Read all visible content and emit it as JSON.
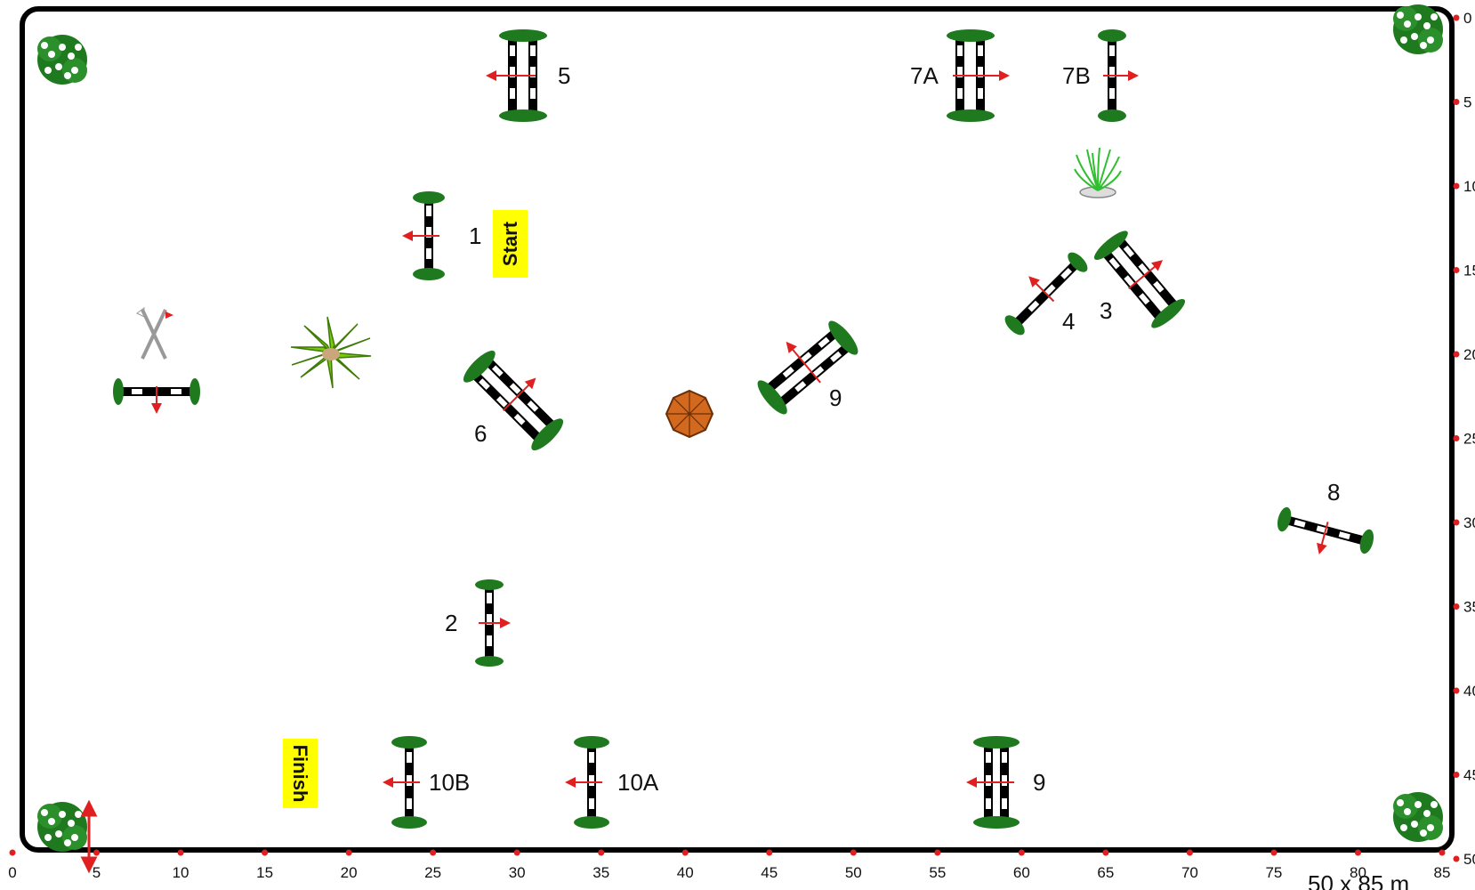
{
  "arena": {
    "size_label": "50 x 85 m",
    "x_ticks": [
      "0",
      "5",
      "10",
      "15",
      "20",
      "25",
      "30",
      "35",
      "40",
      "45",
      "50",
      "55",
      "60",
      "65",
      "70",
      "75",
      "80",
      "85"
    ],
    "y_ticks": [
      "0",
      "5",
      "10",
      "15",
      "20",
      "25",
      "30",
      "35",
      "40",
      "45",
      "50"
    ],
    "colors": {
      "border": "#000000",
      "foliage": "#1f7a1f",
      "arrow": "#e02020",
      "badge": "#ffff00",
      "umbrella": "#d2691e",
      "tick_dot": "#e02020"
    }
  },
  "badges": {
    "start": "Start",
    "finish": "Finish"
  },
  "obstacles": [
    {
      "id": "1",
      "label": "1",
      "kind": "vertical"
    },
    {
      "id": "2",
      "label": "2",
      "kind": "vertical"
    },
    {
      "id": "3",
      "label": "3",
      "kind": "oxer"
    },
    {
      "id": "4",
      "label": "4",
      "kind": "vertical"
    },
    {
      "id": "5",
      "label": "5",
      "kind": "oxer"
    },
    {
      "id": "6",
      "label": "6",
      "kind": "oxer"
    },
    {
      "id": "7a",
      "label": "7A",
      "kind": "oxer"
    },
    {
      "id": "7b",
      "label": "7B",
      "kind": "vertical"
    },
    {
      "id": "8",
      "label": "8",
      "kind": "vertical"
    },
    {
      "id": "9-mid",
      "label": "9",
      "kind": "oxer"
    },
    {
      "id": "9-bottom",
      "label": "9",
      "kind": "oxer"
    },
    {
      "id": "10a",
      "label": "10A",
      "kind": "vertical"
    },
    {
      "id": "10b",
      "label": "10B",
      "kind": "vertical"
    },
    {
      "id": "practice",
      "label": "",
      "kind": "vertical"
    }
  ],
  "decor": [
    "flower-bed-icon",
    "grass-pot-icon",
    "palm-plant-icon",
    "umbrella-icon",
    "crossed-poles-icon"
  ]
}
